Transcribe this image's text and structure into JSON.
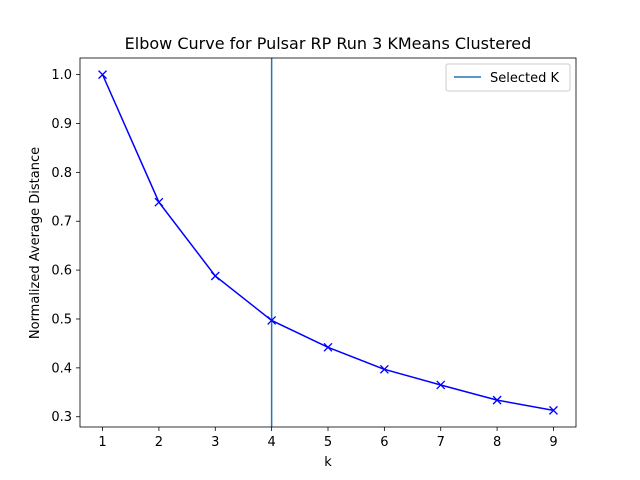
{
  "chart_data": {
    "type": "line",
    "title": "Elbow Curve for Pulsar RP Run 3 KMeans Clustered",
    "xlabel": "k",
    "ylabel": "Normalized Average Distance",
    "x": [
      1,
      2,
      3,
      4,
      5,
      6,
      7,
      8,
      9
    ],
    "series": [
      {
        "values": [
          1.0,
          0.739,
          0.588,
          0.497,
          0.442,
          0.397,
          0.365,
          0.334,
          0.313
        ],
        "color": "#0000ff",
        "marker": "x"
      }
    ],
    "vline": {
      "x": 4,
      "label": "Selected K",
      "color": "#1f77b4"
    },
    "xlim": [
      0.6,
      9.4
    ],
    "ylim": [
      0.279,
      1.034
    ],
    "xticks": [
      1,
      2,
      3,
      4,
      5,
      6,
      7,
      8,
      9
    ],
    "xtick_labels": [
      "1",
      "2",
      "3",
      "4",
      "5",
      "6",
      "7",
      "8",
      "9"
    ],
    "yticks": [
      0.3,
      0.4,
      0.5,
      0.6,
      0.7,
      0.8,
      0.9,
      1.0
    ],
    "ytick_labels": [
      "0.3",
      "0.4",
      "0.5",
      "0.6",
      "0.7",
      "0.8",
      "0.9",
      "1.0"
    ],
    "grid": false,
    "legend_position": "top-right"
  }
}
